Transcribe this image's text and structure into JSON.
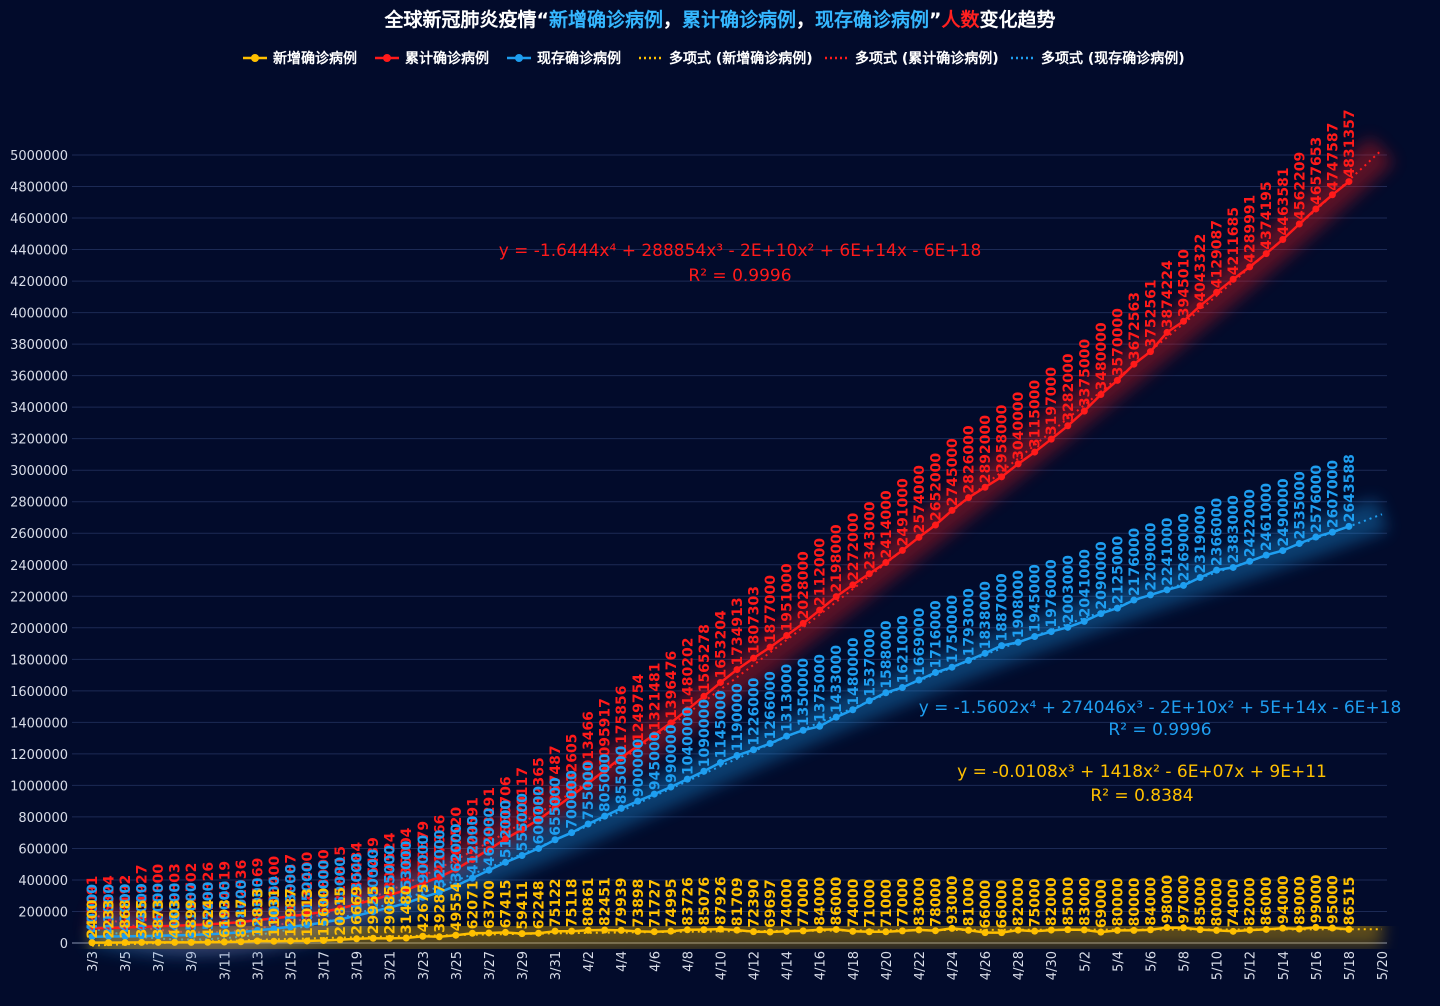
{
  "chart_data": {
    "type": "line",
    "title_parts": [
      {
        "text": "全球新冠肺炎疫情“",
        "color": "#ffffff"
      },
      {
        "text": "新增确诊病例",
        "color": "#35b7ff"
      },
      {
        "text": "，",
        "color": "#ffffff"
      },
      {
        "text": "累计确诊病例",
        "color": "#35b7ff"
      },
      {
        "text": "，",
        "color": "#ffffff"
      },
      {
        "text": "现存确诊病例",
        "color": "#35b7ff"
      },
      {
        "text": "”",
        "color": "#ffffff"
      },
      {
        "text": "人数",
        "color": "#ff2020"
      },
      {
        "text": "变化趋势",
        "color": "#ffffff"
      }
    ],
    "categories": [
      "3/3",
      null,
      "3/5",
      null,
      "3/7",
      null,
      "3/9",
      null,
      "3/11",
      null,
      "3/13",
      null,
      "3/15",
      null,
      "3/17",
      null,
      "3/19",
      null,
      "3/21",
      null,
      "3/23",
      null,
      "3/25",
      null,
      "3/27",
      null,
      "3/29",
      null,
      "3/31",
      null,
      "4/2",
      null,
      "4/4",
      null,
      "4/6",
      null,
      "4/8",
      null,
      "4/10",
      null,
      "4/12",
      null,
      "4/14",
      null,
      "4/16",
      null,
      "4/18",
      null,
      "4/20",
      null,
      "4/22",
      null,
      "4/24",
      null,
      "4/26",
      null,
      "4/28",
      null,
      "4/30",
      null,
      "5/2",
      null,
      "5/4",
      null,
      "5/6",
      null,
      "5/8",
      null,
      "5/10",
      null,
      "5/12",
      null,
      "5/14",
      null,
      "5/16",
      null,
      "5/18",
      null,
      "5/20"
    ],
    "series": [
      {
        "name": "新增确诊病例",
        "color": "#ffc000",
        "values": [
          2400,
          2233,
          2868,
          3735,
          3873,
          4003,
          3899,
          4624,
          6193,
          8017,
          12833,
          11031,
          12987,
          13013,
          15600,
          20815,
          26669,
          29955,
          29085,
          31480,
          42675,
          39287,
          49554,
          62071,
          63700,
          67415,
          59411,
          62248,
          75122,
          75118,
          80861,
          82451,
          79939,
          73898,
          71727,
          74995,
          83726,
          85076,
          87926,
          81709,
          72390,
          69697,
          74000,
          77000,
          84000,
          86000,
          74000,
          71000,
          71000,
          77000,
          83000,
          78000,
          93000,
          81000,
          66000,
          66000,
          82000,
          75000,
          82000,
          85000,
          83000,
          69000,
          80000,
          80000,
          84000,
          98000,
          97000,
          85000,
          80000,
          74000,
          82000,
          86000,
          94000,
          89000,
          99000,
          95000,
          86515,
          null,
          null
        ]
      },
      {
        "name": "累计确诊病例",
        "color": "#ff1a1a",
        "values": [
          93091,
          95324,
          98192,
          101927,
          105800,
          109803,
          113702,
          118326,
          124519,
          132536,
          145369,
          156400,
          169387,
          182400,
          198000,
          218815,
          245484,
          275439,
          304524,
          336004,
          378679,
          417966,
          467520,
          529591,
          593291,
          660706,
          720117,
          782365,
          857487,
          932605,
          1013466,
          1095917,
          1175856,
          1249754,
          1321481,
          1396476,
          1480202,
          1565278,
          1653204,
          1734913,
          1807303,
          1877000,
          1951000,
          2028000,
          2112000,
          2198000,
          2272000,
          2343000,
          2414000,
          2491000,
          2574000,
          2652000,
          2745000,
          2826000,
          2892000,
          2958000,
          3040000,
          3115000,
          3197000,
          3282000,
          3375000,
          3480000,
          3570000,
          3672563,
          3752561,
          3874224,
          3945010,
          4043322,
          4129087,
          4211685,
          4289991,
          4374195,
          4463581,
          4562209,
          4657653,
          4747587,
          4831357,
          null,
          null
        ]
      },
      {
        "name": "现存确诊病例",
        "color": "#1e9ef0",
        "values": [
          40000,
          41000,
          42000,
          44000,
          46000,
          48000,
          51000,
          55000,
          60000,
          68000,
          80000,
          90000,
          103000,
          115000,
          130000,
          150000,
          173000,
          200000,
          225000,
          253000,
          290000,
          322000,
          362000,
          412000,
          462000,
          512000,
          555000,
          600000,
          655000,
          700000,
          755000,
          805000,
          855000,
          900000,
          945000,
          990000,
          1040000,
          1090000,
          1145000,
          1190000,
          1226000,
          1266000,
          1313000,
          1350000,
          1375000,
          1433000,
          1480000,
          1537000,
          1588000,
          1621000,
          1669000,
          1716000,
          1750000,
          1793000,
          1838000,
          1887000,
          1908000,
          1945000,
          1976000,
          2003000,
          2041000,
          2090000,
          2125000,
          2176000,
          2209000,
          2241000,
          2269000,
          2319000,
          2366000,
          2383000,
          2422000,
          2461000,
          2490000,
          2535000,
          2576000,
          2607000,
          2643588,
          null,
          null
        ]
      }
    ],
    "trendlines": [
      {
        "name": "多项式 (新增确诊病例)",
        "degree": 3,
        "equation": "y = -0.0108x³ + 1418x² - 6E+07x + 9E+11",
        "r2": "R² = 0.8384"
      },
      {
        "name": "多项式 (累计确诊病例)",
        "degree": 4,
        "equation": "y = -1.6444x⁴ + 288854x³ - 2E+10x² + 6E+14x - 6E+18",
        "r2": "R² = 0.9996"
      },
      {
        "name": "多项式 (现存确诊病例)",
        "degree": 4,
        "equation": "y = -1.5602x⁴ + 274046x³ - 2E+10x² + 5E+14x - 6E+18",
        "r2": "R² = 0.9996"
      }
    ],
    "ylim": [
      0,
      5000000
    ],
    "yticks": [
      0,
      200000,
      400000,
      600000,
      800000,
      1000000,
      1200000,
      1400000,
      1600000,
      1800000,
      2000000,
      2200000,
      2400000,
      2600000,
      2800000,
      3000000,
      3200000,
      3400000,
      3600000,
      3800000,
      4000000,
      4200000,
      4400000,
      4600000,
      4800000,
      5000000
    ],
    "grid": true
  }
}
